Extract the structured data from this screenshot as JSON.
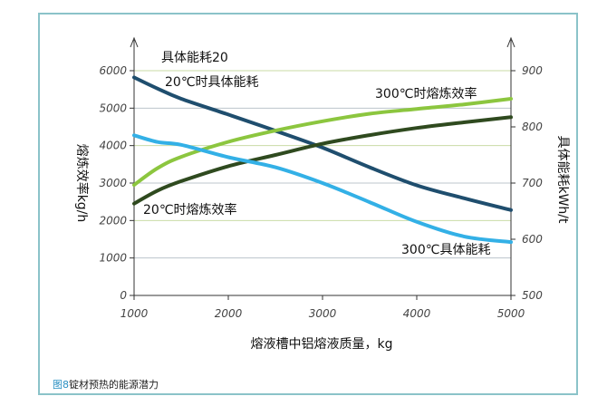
{
  "caption": {
    "figure_number": "图8",
    "text": "锭材预热的能源潜力"
  },
  "chart_data": {
    "type": "line",
    "xlabel": "熔液槽中铝熔液质量，kg",
    "ylabel_left": "熔炼效率kg/h",
    "ylabel_right": "具体能耗kWh/t",
    "xlim": [
      1000,
      5000
    ],
    "ylim_left": [
      0,
      6000
    ],
    "ylim_right": [
      500,
      900
    ],
    "x_ticks": [
      "1000",
      "2000",
      "3000",
      "4000",
      "5000"
    ],
    "y_left_ticks": [
      "0",
      "1000",
      "2000",
      "3000",
      "4000",
      "5000",
      "6000"
    ],
    "y_right_ticks": [
      "500",
      "600",
      "700",
      "800",
      "900"
    ],
    "grid": true,
    "top_label": "具体能耗20",
    "series": [
      {
        "name": "20℃时具体能耗",
        "axis": "right",
        "color": "#1f4e6e",
        "x": [
          1000,
          1250,
          1500,
          2000,
          2500,
          3000,
          3500,
          4000,
          4500,
          5000
        ],
        "y": [
          888,
          868,
          850,
          822,
          793,
          763,
          728,
          696,
          673,
          652
        ]
      },
      {
        "name": "300℃时熔炼效率",
        "axis": "left",
        "color": "#8cc63f",
        "x": [
          1000,
          1250,
          1500,
          2000,
          2500,
          3000,
          3500,
          4000,
          4500,
          5000
        ],
        "y": [
          2950,
          3400,
          3700,
          4100,
          4400,
          4650,
          4850,
          4980,
          5100,
          5250
        ]
      },
      {
        "name": "20℃时熔炼效率",
        "axis": "left",
        "color": "#2f4a1f",
        "x": [
          1000,
          1250,
          1500,
          2000,
          2500,
          3000,
          3500,
          4000,
          4500,
          5000
        ],
        "y": [
          2450,
          2800,
          3050,
          3450,
          3750,
          4050,
          4280,
          4470,
          4620,
          4760
        ]
      },
      {
        "name": "300℃具体能耗",
        "axis": "right",
        "color": "#33b0e6",
        "x": [
          1000,
          1250,
          1500,
          2000,
          2500,
          3000,
          3500,
          4000,
          4500,
          5000
        ],
        "y": [
          785,
          773,
          768,
          746,
          728,
          700,
          666,
          631,
          605,
          595
        ]
      }
    ]
  }
}
